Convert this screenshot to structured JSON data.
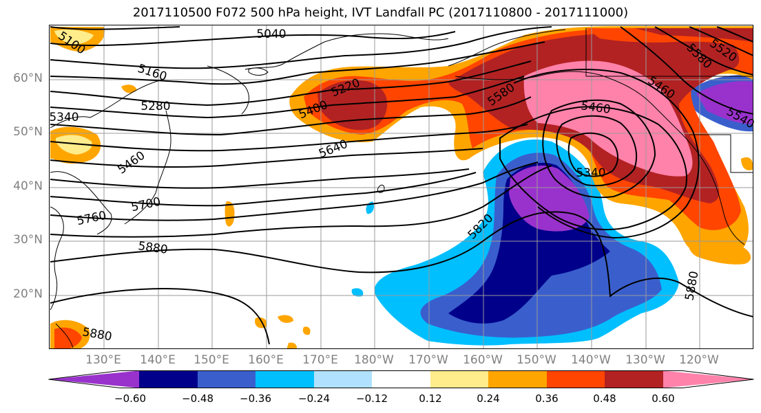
{
  "title": "2017110500 F072 500 hPa height, IVT Landfall PC (2017110800 - 2017111000)",
  "lat_labels": [
    "60°N",
    "50°N",
    "40°N",
    "30°N",
    "20°N"
  ],
  "lon_labels": [
    "130°E",
    "140°E",
    "150°E",
    "160°E",
    "170°E",
    "180°W",
    "170°W",
    "160°W",
    "150°W",
    "140°W",
    "130°W",
    "120°W"
  ],
  "contour_labels": [
    "5100",
    "5040",
    "5160",
    "5220",
    "5280",
    "5340",
    "5400",
    "5460",
    "5580",
    "5640",
    "5700",
    "5760",
    "5820",
    "5880",
    "5880",
    "5880",
    "5460",
    "5340",
    "5460",
    "5520",
    "5580",
    "5540"
  ],
  "colorbar": {
    "tick_labels": [
      "−0.60",
      "−0.48",
      "−0.36",
      "−0.24",
      "−0.12",
      "0.12",
      "0.24",
      "0.36",
      "0.48",
      "0.60"
    ],
    "colors": [
      "#9932cc",
      "#00008b",
      "#3a5fcd",
      "#00bfff",
      "#b0e2ff",
      "#ffffff",
      "#ffec8b",
      "#ffa500",
      "#ff4500",
      "#b22222",
      "#ff82ab"
    ]
  }
}
